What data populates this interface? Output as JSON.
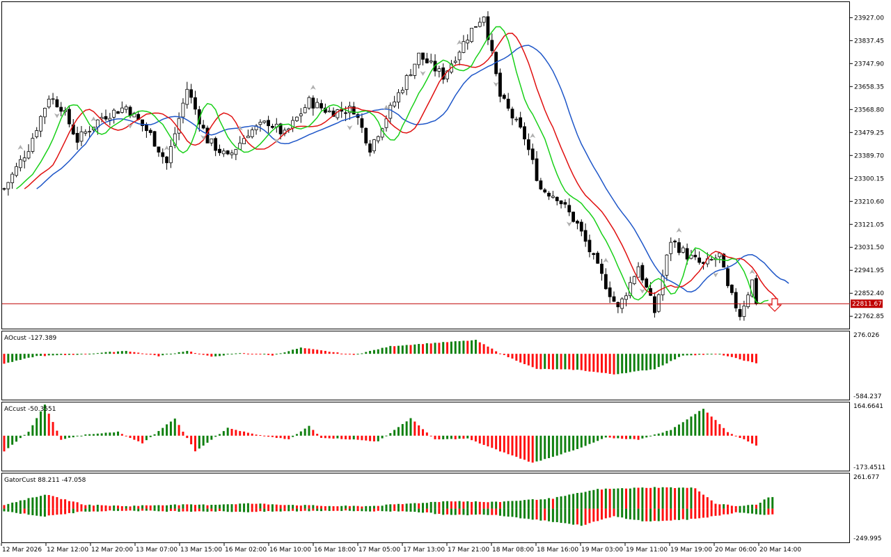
{
  "price_panel": {
    "y_ticks": [
      "23927.00",
      "23837.45",
      "23747.90",
      "23658.35",
      "23568.80",
      "23479.25",
      "23389.70",
      "23300.15",
      "23210.60",
      "23121.05",
      "23031.50",
      "22941.95",
      "22852.40",
      "22762.85"
    ],
    "y_range": [
      22720,
      23985
    ],
    "current_price": "22811.67",
    "current_price_value": 22811.67,
    "colors": {
      "bull": "#ffffff",
      "bear": "#000000",
      "blue": "#1e56c8",
      "red": "#e01010",
      "green": "#18d018",
      "price_line": "#c00000"
    }
  },
  "ao_panel": {
    "label": "AOcust -127.389",
    "max_label": "276.026",
    "min_label": "-584.237",
    "range": [
      -584.237,
      276.026
    ]
  },
  "ac_panel": {
    "label": "ACcust -50.3551",
    "max_label": "164.6641",
    "min_label": "-173.4511",
    "range": [
      -173.4511,
      164.6641
    ]
  },
  "gator_panel": {
    "label": "GatorCust 88.211 -47.058",
    "max_label": "261.677",
    "min_label": "-249.995",
    "range": [
      -249.995,
      261.677
    ]
  },
  "x_labels": [
    "12 Mar 2026",
    "12 Mar 12:00",
    "12 Mar 20:00",
    "13 Mar 07:00",
    "13 Mar 15:00",
    "16 Mar 02:00",
    "16 Mar 10:00",
    "16 Mar 18:00",
    "17 Mar 05:00",
    "17 Mar 13:00",
    "17 Mar 21:00",
    "18 Mar 08:00",
    "18 Mar 16:00",
    "19 Mar 03:00",
    "19 Mar 11:00",
    "19 Mar 19:00",
    "20 Mar 06:00",
    "20 Mar 14:00"
  ],
  "chart_data": {
    "type": "candlestick",
    "timeframe_step": "1 hour",
    "series": [
      {
        "name": "price",
        "anchors": [
          [
            0,
            23260
          ],
          [
            6,
            23420
          ],
          [
            11,
            23620
          ],
          [
            14,
            23580
          ],
          [
            18,
            23450
          ],
          [
            24,
            23540
          ],
          [
            30,
            23580
          ],
          [
            36,
            23470
          ],
          [
            40,
            23360
          ],
          [
            45,
            23650
          ],
          [
            50,
            23450
          ],
          [
            55,
            23380
          ],
          [
            60,
            23480
          ],
          [
            65,
            23520
          ],
          [
            69,
            23470
          ],
          [
            75,
            23600
          ],
          [
            80,
            23560
          ],
          [
            86,
            23570
          ],
          [
            90,
            23420
          ],
          [
            95,
            23570
          ],
          [
            102,
            23780
          ],
          [
            108,
            23700
          ],
          [
            115,
            23880
          ],
          [
            118,
            23940
          ],
          [
            122,
            23620
          ],
          [
            128,
            23460
          ],
          [
            132,
            23260
          ],
          [
            136,
            23230
          ],
          [
            141,
            23120
          ],
          [
            146,
            22950
          ],
          [
            151,
            22790
          ],
          [
            156,
            22960
          ],
          [
            160,
            22780
          ],
          [
            164,
            23060
          ],
          [
            168,
            23000
          ],
          [
            172,
            22960
          ],
          [
            176,
            23000
          ],
          [
            178,
            22870
          ],
          [
            181,
            22770
          ],
          [
            184,
            22900
          ],
          [
            185,
            22820
          ]
        ]
      },
      {
        "name": "AOcust",
        "anchors": [
          [
            0,
            -130
          ],
          [
            8,
            -30
          ],
          [
            18,
            -10
          ],
          [
            30,
            40
          ],
          [
            38,
            -30
          ],
          [
            45,
            40
          ],
          [
            51,
            -40
          ],
          [
            58,
            10
          ],
          [
            66,
            -20
          ],
          [
            73,
            80
          ],
          [
            86,
            -15
          ],
          [
            95,
            100
          ],
          [
            105,
            140
          ],
          [
            116,
            180
          ],
          [
            123,
            -20
          ],
          [
            131,
            -200
          ],
          [
            141,
            -210
          ],
          [
            150,
            -270
          ],
          [
            160,
            -200
          ],
          [
            167,
            -20
          ],
          [
            176,
            -5
          ],
          [
            185,
            -127
          ]
        ]
      },
      {
        "name": "ACcust",
        "anchors": [
          [
            0,
            -80
          ],
          [
            6,
            20
          ],
          [
            10,
            160
          ],
          [
            14,
            -20
          ],
          [
            20,
            5
          ],
          [
            28,
            20
          ],
          [
            34,
            -40
          ],
          [
            42,
            90
          ],
          [
            47,
            -80
          ],
          [
            55,
            40
          ],
          [
            62,
            5
          ],
          [
            70,
            -20
          ],
          [
            75,
            50
          ],
          [
            78,
            -10
          ],
          [
            86,
            -20
          ],
          [
            92,
            -30
          ],
          [
            100,
            90
          ],
          [
            106,
            -20
          ],
          [
            114,
            -15
          ],
          [
            122,
            -80
          ],
          [
            130,
            -140
          ],
          [
            141,
            -70
          ],
          [
            148,
            -10
          ],
          [
            156,
            -20
          ],
          [
            164,
            30
          ],
          [
            172,
            140
          ],
          [
            178,
            20
          ],
          [
            185,
            -50
          ]
        ]
      },
      {
        "name": "GatorCust upper",
        "anchors": [
          [
            0,
            30
          ],
          [
            10,
            110
          ],
          [
            20,
            30
          ],
          [
            30,
            20
          ],
          [
            40,
            30
          ],
          [
            50,
            30
          ],
          [
            60,
            40
          ],
          [
            70,
            30
          ],
          [
            80,
            20
          ],
          [
            90,
            20
          ],
          [
            100,
            40
          ],
          [
            110,
            60
          ],
          [
            120,
            50
          ],
          [
            135,
            80
          ],
          [
            146,
            150
          ],
          [
            160,
            165
          ],
          [
            170,
            160
          ],
          [
            175,
            40
          ],
          [
            180,
            20
          ],
          [
            185,
            30
          ],
          [
            188,
            88
          ]
        ]
      },
      {
        "name": "GatorCust lower",
        "anchors": [
          [
            0,
            -20
          ],
          [
            10,
            -60
          ],
          [
            20,
            -20
          ],
          [
            30,
            -15
          ],
          [
            40,
            -20
          ],
          [
            50,
            -20
          ],
          [
            60,
            -25
          ],
          [
            70,
            -20
          ],
          [
            80,
            -15
          ],
          [
            90,
            -20
          ],
          [
            100,
            -20
          ],
          [
            110,
            -50
          ],
          [
            120,
            -45
          ],
          [
            135,
            -100
          ],
          [
            142,
            -130
          ],
          [
            150,
            -60
          ],
          [
            158,
            -100
          ],
          [
            170,
            -80
          ],
          [
            180,
            -30
          ],
          [
            185,
            -40
          ],
          [
            188,
            -47
          ]
        ]
      }
    ]
  }
}
